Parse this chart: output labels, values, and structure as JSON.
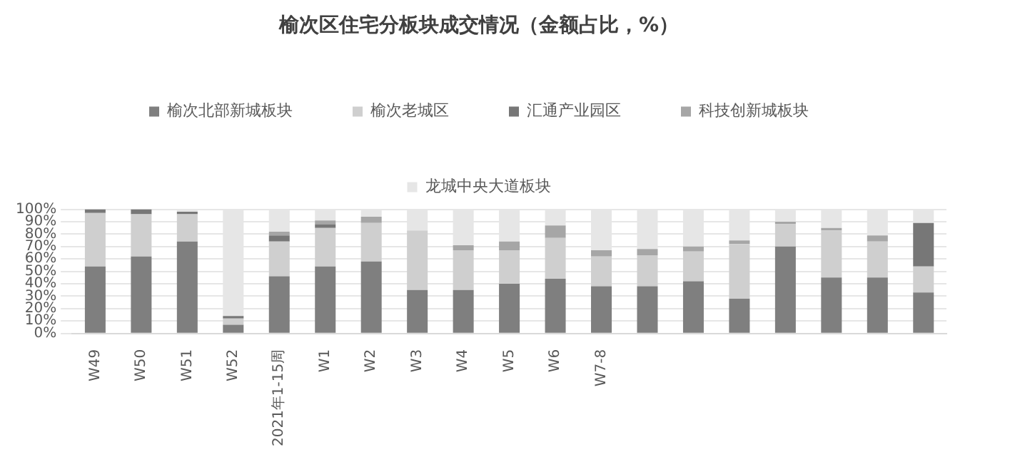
{
  "chart_data": {
    "type": "bar",
    "title": "榆次区住宅分板块成交情况（金额占比，%）",
    "stacked": true,
    "legend": "top",
    "grid": "y",
    "categories": [
      "W49",
      "W50",
      "W51",
      "W52",
      "2021年1-15周",
      "W1",
      "W2",
      "W3",
      "W4",
      "W5",
      "W6",
      "W7-8",
      null,
      null,
      null,
      null,
      null,
      null,
      null
    ],
    "ylim": [
      0,
      100
    ],
    "yticks": [
      {
        "value": 0,
        "label": "0%"
      },
      {
        "value": 10,
        "label": "10%"
      },
      {
        "value": 20,
        "label": "20%"
      },
      {
        "value": 30,
        "label": "30%"
      },
      {
        "value": 40,
        "label": "40%"
      },
      {
        "value": 50,
        "label": "50%"
      },
      {
        "value": 60,
        "label": "60%"
      },
      {
        "value": 70,
        "label": "70%"
      },
      {
        "value": 80,
        "label": "80%"
      },
      {
        "value": 90,
        "label": "90%"
      },
      {
        "value": 100,
        "label": "100%"
      }
    ],
    "series": [
      {
        "name": "榆次北部新城板块",
        "color": "#7f7f7f",
        "values": [
          54,
          62,
          74,
          7,
          46,
          54,
          58,
          35,
          35,
          40,
          44,
          38,
          38,
          42,
          28,
          70,
          45,
          45,
          33
        ]
      },
      {
        "name": "榆次老城区",
        "color": "#cfcfcf",
        "values": [
          43,
          34,
          22,
          5,
          28,
          31,
          31,
          48,
          32,
          27,
          33,
          24,
          25,
          24,
          44,
          18,
          38,
          29,
          21
        ]
      },
      {
        "name": "汇通产业园区",
        "color": "#777777",
        "values": [
          3,
          4,
          2,
          2,
          5,
          3,
          0,
          0,
          0,
          0,
          0,
          0,
          0,
          0,
          0,
          0,
          0,
          0,
          35
        ]
      },
      {
        "name": "科技创新城板块",
        "color": "#a6a6a6",
        "values": [
          0,
          0,
          0,
          0,
          3,
          3,
          5,
          0,
          4,
          7,
          10,
          5,
          5,
          4,
          3,
          2,
          2,
          5,
          0
        ]
      },
      {
        "name": "龙城中央大道板块",
        "color": "#e6e6e6",
        "values": [
          0,
          0,
          2,
          86,
          18,
          9,
          6,
          17,
          29,
          26,
          13,
          33,
          32,
          30,
          25,
          10,
          15,
          21,
          11
        ]
      }
    ]
  }
}
